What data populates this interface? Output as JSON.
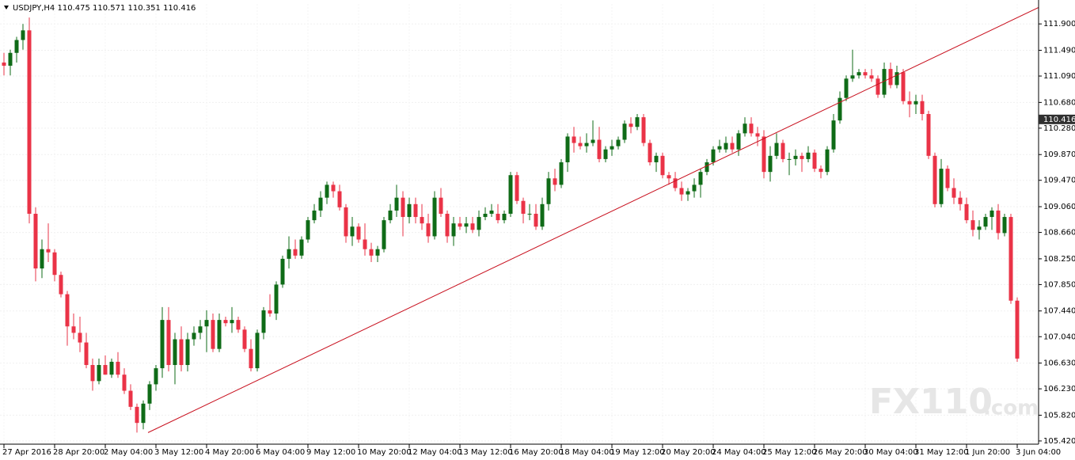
{
  "chart_data": {
    "type": "candlestick",
    "title": "USDJPY,H4  110.475 110.571 110.351 110.416",
    "watermark": {
      "main": "FX110",
      "suffix": ".com"
    },
    "current_price": 110.416,
    "up_color": "#0f6b17",
    "down_color": "#ea3347",
    "grid": true,
    "ylim": [
      105.37,
      112.21
    ],
    "yticks": [
      {
        "value": 111.9,
        "label": "111.900"
      },
      {
        "value": 111.49,
        "label": "111.490"
      },
      {
        "value": 111.09,
        "label": "111.090"
      },
      {
        "value": 110.68,
        "label": "110.680"
      },
      {
        "value": 110.28,
        "label": "110.280"
      },
      {
        "value": 109.87,
        "label": "109.870"
      },
      {
        "value": 109.47,
        "label": "109.470"
      },
      {
        "value": 109.06,
        "label": "109.060"
      },
      {
        "value": 108.66,
        "label": "108.660"
      },
      {
        "value": 108.25,
        "label": "108.250"
      },
      {
        "value": 107.85,
        "label": "107.850"
      },
      {
        "value": 107.44,
        "label": "107.440"
      },
      {
        "value": 107.04,
        "label": "107.040"
      },
      {
        "value": 106.63,
        "label": "106.630"
      },
      {
        "value": 106.23,
        "label": "106.230"
      },
      {
        "value": 105.82,
        "label": "105.820"
      },
      {
        "value": 105.42,
        "label": "105.420"
      }
    ],
    "trendline": {
      "x": [
        22.75,
        163.9
      ],
      "y": [
        105.55,
        112.18
      ],
      "color": "#c8101e"
    },
    "categories": [
      "27 Apr 2016",
      null,
      null,
      null,
      null,
      null,
      null,
      null,
      "28 Apr 20:00",
      null,
      null,
      null,
      null,
      null,
      null,
      null,
      "2 May 04:00",
      null,
      null,
      null,
      null,
      null,
      null,
      null,
      "3 May 12:00",
      null,
      null,
      null,
      null,
      null,
      null,
      null,
      "4 May 20:00",
      null,
      null,
      null,
      null,
      null,
      null,
      null,
      "6 May 04:00",
      null,
      null,
      null,
      null,
      null,
      null,
      null,
      "9 May 12:00",
      null,
      null,
      null,
      null,
      null,
      null,
      null,
      "10 May 20:00",
      null,
      null,
      null,
      null,
      null,
      null,
      null,
      "12 May 04:00",
      null,
      null,
      null,
      null,
      null,
      null,
      null,
      "13 May 12:00",
      null,
      null,
      null,
      null,
      null,
      null,
      null,
      "16 May 20:00",
      null,
      null,
      null,
      null,
      null,
      null,
      null,
      "18 May 04:00",
      null,
      null,
      null,
      null,
      null,
      null,
      null,
      "19 May 12:00",
      null,
      null,
      null,
      null,
      null,
      null,
      null,
      "20 May 20:00",
      null,
      null,
      null,
      null,
      null,
      null,
      null,
      "24 May 04:00",
      null,
      null,
      null,
      null,
      null,
      null,
      null,
      "25 May 12:00",
      null,
      null,
      null,
      null,
      null,
      null,
      null,
      "26 May 20:00",
      null,
      null,
      null,
      null,
      null,
      null,
      null,
      "30 May 04:00",
      null,
      null,
      null,
      null,
      null,
      null,
      null,
      "31 May 12:00",
      null,
      null,
      null,
      null,
      null,
      null,
      null,
      "1 Jun 20:00",
      null,
      null,
      null,
      null,
      null,
      null,
      null,
      "3 Jun 04:00"
    ],
    "open": [
      111.3,
      111.25,
      111.45,
      111.65,
      111.8,
      108.95,
      108.1,
      108.4,
      108.35,
      108.0,
      107.7,
      107.2,
      107.1,
      106.95,
      106.6,
      106.35,
      106.6,
      106.45,
      106.65,
      106.45,
      106.2,
      105.95,
      105.7,
      106.0,
      106.3,
      106.55,
      107.3,
      106.6,
      107.0,
      106.6,
      107.0,
      107.1,
      107.2,
      107.3,
      106.85,
      107.3,
      107.25,
      107.3,
      107.15,
      106.85,
      106.55,
      107.1,
      107.45,
      107.4,
      107.85,
      108.25,
      108.4,
      108.3,
      108.55,
      108.85,
      109.0,
      109.2,
      109.4,
      109.3,
      109.05,
      108.6,
      108.75,
      108.55,
      108.4,
      108.3,
      108.4,
      108.85,
      109.0,
      109.2,
      108.9,
      109.1,
      108.9,
      108.8,
      108.6,
      109.2,
      108.95,
      108.6,
      108.8,
      108.75,
      108.8,
      108.7,
      108.9,
      108.95,
      108.95,
      108.85,
      108.95,
      109.55,
      109.15,
      108.95,
      108.95,
      108.75,
      109.1,
      109.5,
      109.4,
      109.75,
      110.15,
      110.05,
      110.0,
      110.05,
      110.1,
      109.8,
      109.95,
      110.0,
      110.1,
      110.35,
      110.3,
      110.45,
      110.05,
      109.75,
      109.85,
      109.55,
      109.5,
      109.35,
      109.25,
      109.3,
      109.4,
      109.6,
      109.75,
      109.95,
      109.95,
      110.05,
      109.95,
      110.2,
      110.35,
      110.2,
      110.15,
      109.6,
      109.85,
      110.05,
      109.8,
      109.8,
      109.85,
      109.8,
      109.9,
      109.65,
      109.6,
      109.95,
      110.4,
      110.75,
      111.05,
      111.1,
      111.15,
      111.1,
      111.05,
      110.8,
      111.2,
      110.95,
      111.15,
      110.7,
      110.65,
      110.7,
      110.5,
      109.85,
      109.1,
      109.65,
      109.35,
      109.2,
      109.1,
      108.85,
      108.7,
      108.75,
      108.9,
      109.0,
      108.65,
      108.9,
      107.6
    ],
    "high": [
      111.45,
      111.5,
      111.7,
      111.9,
      112.0,
      109.05,
      108.55,
      108.8,
      108.4,
      108.05,
      107.75,
      107.4,
      107.35,
      107.1,
      106.7,
      106.7,
      106.75,
      106.7,
      106.8,
      106.55,
      106.3,
      106.0,
      106.05,
      106.35,
      106.6,
      107.5,
      107.5,
      107.1,
      107.2,
      107.1,
      107.2,
      107.3,
      107.45,
      107.4,
      107.4,
      107.35,
      107.5,
      107.35,
      107.2,
      107.0,
      107.15,
      107.5,
      107.7,
      107.9,
      108.3,
      108.6,
      108.55,
      108.6,
      108.9,
      109.1,
      109.3,
      109.45,
      109.45,
      109.4,
      109.1,
      108.9,
      108.8,
      108.8,
      108.5,
      108.45,
      108.9,
      109.1,
      109.4,
      109.3,
      109.2,
      109.2,
      109.1,
      108.95,
      109.3,
      109.35,
      109.0,
      108.9,
      108.9,
      108.9,
      108.9,
      109.0,
      109.05,
      109.1,
      109.1,
      109.0,
      109.6,
      109.6,
      109.2,
      109.1,
      109.1,
      109.2,
      109.6,
      109.65,
      109.8,
      110.2,
      110.3,
      110.15,
      110.2,
      110.4,
      110.3,
      110.0,
      110.1,
      110.15,
      110.4,
      110.45,
      110.5,
      110.5,
      110.1,
      109.9,
      109.9,
      109.6,
      109.6,
      109.45,
      109.35,
      109.5,
      109.65,
      109.8,
      110.0,
      110.1,
      110.15,
      110.15,
      110.25,
      110.45,
      110.45,
      110.3,
      110.25,
      110.0,
      110.2,
      110.1,
      109.9,
      109.95,
      109.9,
      110.0,
      109.95,
      109.7,
      110.0,
      110.5,
      110.85,
      111.1,
      111.5,
      111.2,
      111.2,
      111.2,
      111.1,
      111.3,
      111.3,
      111.25,
      111.2,
      110.85,
      110.8,
      110.8,
      110.55,
      109.9,
      109.8,
      109.7,
      109.5,
      109.3,
      109.2,
      109.0,
      108.85,
      108.95,
      109.05,
      109.1,
      108.95,
      108.95,
      107.65
    ],
    "low": [
      111.1,
      111.1,
      111.3,
      111.5,
      108.8,
      107.9,
      107.95,
      108.2,
      107.9,
      107.65,
      106.9,
      107.0,
      106.8,
      106.55,
      106.2,
      106.3,
      106.45,
      106.4,
      106.4,
      106.15,
      105.9,
      105.55,
      105.6,
      105.9,
      106.2,
      106.4,
      106.5,
      106.3,
      106.5,
      106.5,
      106.9,
      107.0,
      106.8,
      106.8,
      106.8,
      107.2,
      107.1,
      107.1,
      106.8,
      106.5,
      106.5,
      107.0,
      107.35,
      107.3,
      107.8,
      108.1,
      108.25,
      108.25,
      108.5,
      108.8,
      108.9,
      109.1,
      109.2,
      109.0,
      108.5,
      108.45,
      108.5,
      108.3,
      108.2,
      108.2,
      108.35,
      108.8,
      108.9,
      108.6,
      108.8,
      108.8,
      108.7,
      108.5,
      108.55,
      108.9,
      108.5,
      108.45,
      108.7,
      108.65,
      108.65,
      108.6,
      108.85,
      108.9,
      108.8,
      108.8,
      108.9,
      109.1,
      108.8,
      108.85,
      108.7,
      108.7,
      109.0,
      109.3,
      109.35,
      109.6,
      109.9,
      109.95,
      109.9,
      110.0,
      109.75,
      109.75,
      109.85,
      109.95,
      110.05,
      110.2,
      110.25,
      110.0,
      109.7,
      109.6,
      109.5,
      109.4,
      109.3,
      109.15,
      109.15,
      109.2,
      109.2,
      109.55,
      109.7,
      109.9,
      109.9,
      109.9,
      109.85,
      110.15,
      110.15,
      110.0,
      109.5,
      109.45,
      109.8,
      109.75,
      109.55,
      109.7,
      109.6,
      109.75,
      109.6,
      109.5,
      109.55,
      109.9,
      110.35,
      110.7,
      111.0,
      111.05,
      111.05,
      111.0,
      110.75,
      110.75,
      110.9,
      110.9,
      110.65,
      110.45,
      110.5,
      110.4,
      109.8,
      109.05,
      109.05,
      109.3,
      109.1,
      109.0,
      108.8,
      108.6,
      108.55,
      108.7,
      108.7,
      108.55,
      108.6,
      107.55,
      106.65
    ],
    "close": [
      111.25,
      111.45,
      111.65,
      111.8,
      108.95,
      108.1,
      108.4,
      108.35,
      108.0,
      107.7,
      107.2,
      107.1,
      106.95,
      106.6,
      106.35,
      106.6,
      106.45,
      106.65,
      106.45,
      106.2,
      105.95,
      105.7,
      106.0,
      106.3,
      106.55,
      107.3,
      106.6,
      107.0,
      106.6,
      107.0,
      107.1,
      107.2,
      107.3,
      106.85,
      107.3,
      107.25,
      107.3,
      107.15,
      106.85,
      106.55,
      107.1,
      107.45,
      107.4,
      107.85,
      108.25,
      108.4,
      108.3,
      108.55,
      108.85,
      109.0,
      109.2,
      109.4,
      109.3,
      109.05,
      108.6,
      108.75,
      108.55,
      108.4,
      108.3,
      108.4,
      108.85,
      109.0,
      109.2,
      108.9,
      109.1,
      108.9,
      108.8,
      108.6,
      109.2,
      108.95,
      108.6,
      108.8,
      108.75,
      108.8,
      108.7,
      108.9,
      108.95,
      109.0,
      108.85,
      108.95,
      109.55,
      109.15,
      108.95,
      108.95,
      108.75,
      109.1,
      109.5,
      109.4,
      109.75,
      110.15,
      110.05,
      110.0,
      110.05,
      110.1,
      109.8,
      109.95,
      110.0,
      110.1,
      110.35,
      110.3,
      110.45,
      110.05,
      109.75,
      109.85,
      109.55,
      109.5,
      109.35,
      109.25,
      109.3,
      109.4,
      109.6,
      109.75,
      109.95,
      110.0,
      110.05,
      109.95,
      110.2,
      110.35,
      110.2,
      110.15,
      109.6,
      109.85,
      110.05,
      109.8,
      109.8,
      109.85,
      109.8,
      109.9,
      109.65,
      109.6,
      109.95,
      110.4,
      110.75,
      111.05,
      111.1,
      111.15,
      111.1,
      111.05,
      110.8,
      111.2,
      110.95,
      111.15,
      110.7,
      110.65,
      110.7,
      110.5,
      109.85,
      109.1,
      109.65,
      109.35,
      109.2,
      109.1,
      108.85,
      108.7,
      108.75,
      108.9,
      109.0,
      108.65,
      108.9,
      107.6,
      106.7
    ]
  }
}
